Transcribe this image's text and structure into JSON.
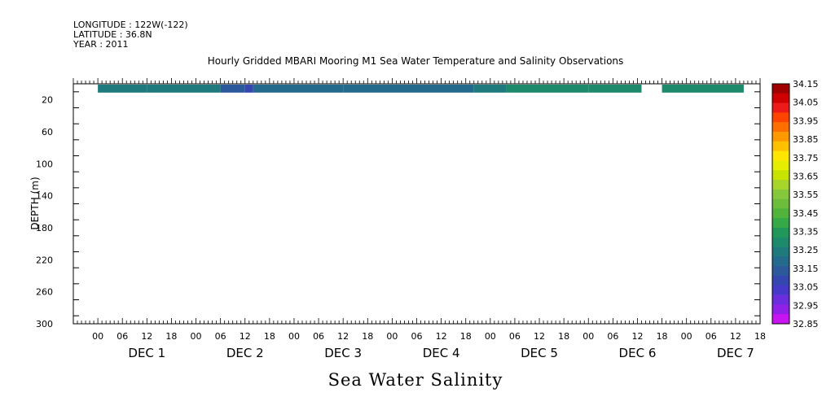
{
  "header": {
    "longitude": "LONGITUDE : 122W(-122)",
    "latitude": "LATITUDE : 36.8N",
    "year": "YEAR : 2011",
    "title": "Hourly Gridded MBARI Mooring M1 Sea Water Temperature and Salinity Observations"
  },
  "chart_data": {
    "type": "heatmap",
    "title": "Hourly Gridded MBARI Mooring M1 Sea Water Temperature and Salinity Observations",
    "xlabel": "Sea Water Salinity",
    "ylabel": "DEPTH (m)",
    "y_inverted": true,
    "ylim": [
      300,
      0
    ],
    "y_ticks": [
      20,
      60,
      100,
      140,
      180,
      220,
      260,
      300
    ],
    "xlim_hours": [
      -6,
      162
    ],
    "x_hour_ticks": [
      "00",
      "06",
      "12",
      "18",
      "00",
      "06",
      "12",
      "18",
      "00",
      "06",
      "12",
      "18",
      "00",
      "06",
      "12",
      "18",
      "00",
      "06",
      "12",
      "18",
      "00",
      "06",
      "12",
      "18",
      "00",
      "06",
      "12",
      "18"
    ],
    "day_labels": [
      "DEC  1",
      "DEC  2",
      "DEC  3",
      "DEC  4",
      "DEC  5",
      "DEC  6",
      "DEC  7"
    ],
    "data_band": {
      "depth_top": 0,
      "depth_bottom": 10,
      "segments": [
        {
          "start_hour": 0,
          "end_hour": 12,
          "value": 33.25
        },
        {
          "start_hour": 12,
          "end_hour": 30,
          "value": 33.25
        },
        {
          "start_hour": 30,
          "end_hour": 36,
          "value": 33.12
        },
        {
          "start_hour": 36,
          "end_hour": 38,
          "value": 33.05
        },
        {
          "start_hour": 38,
          "end_hour": 60,
          "value": 33.15
        },
        {
          "start_hour": 60,
          "end_hour": 92,
          "value": 33.2
        },
        {
          "start_hour": 92,
          "end_hour": 100,
          "value": 33.25
        },
        {
          "start_hour": 100,
          "end_hour": 120,
          "value": 33.3
        },
        {
          "start_hour": 120,
          "end_hour": 133,
          "value": 33.3
        },
        {
          "start_hour": 138,
          "end_hour": 158,
          "value": 33.3
        }
      ]
    },
    "colorbar": {
      "levels": [
        "34.15",
        "34.05",
        "33.95",
        "33.85",
        "33.75",
        "33.65",
        "33.55",
        "33.45",
        "33.35",
        "33.25",
        "33.15",
        "33.05",
        "32.95",
        "32.85"
      ],
      "colors": [
        "#a00000",
        "#d00000",
        "#ee1a1a",
        "#ff4400",
        "#ff6f00",
        "#ff9900",
        "#ffc000",
        "#ffe600",
        "#e6ee00",
        "#c8e300",
        "#a8d52a",
        "#86c83c",
        "#6cbd3c",
        "#4fb33c",
        "#35a848",
        "#21985a",
        "#1e8a6c",
        "#1f7a7e",
        "#246a8c",
        "#2c589c",
        "#3646b0",
        "#4638c8",
        "#6a2cdc",
        "#9020e8",
        "#c814f0"
      ]
    }
  }
}
